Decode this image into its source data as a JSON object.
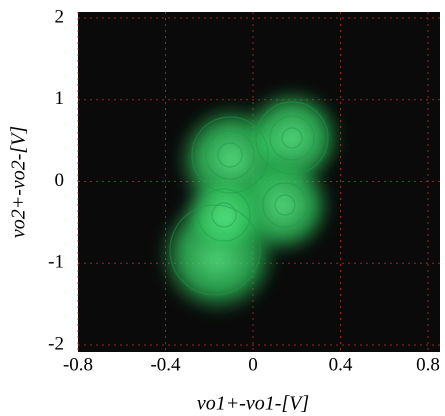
{
  "chart_data": {
    "type": "phase-portrait",
    "xlabel": "vo1+-vo1-[V]",
    "ylabel": "vo2+-vo2-[V]",
    "xlim": [
      -0.8,
      0.8
    ],
    "xticks": [
      -0.8,
      -0.4,
      0,
      0.4,
      0.8
    ],
    "ylim": [
      -2,
      2
    ],
    "yticks": [
      -2,
      -1,
      0,
      1,
      2
    ],
    "grid": true,
    "color": "#3ddc6a",
    "background": "#0a0a0a",
    "grid_color": "#b0302a"
  }
}
